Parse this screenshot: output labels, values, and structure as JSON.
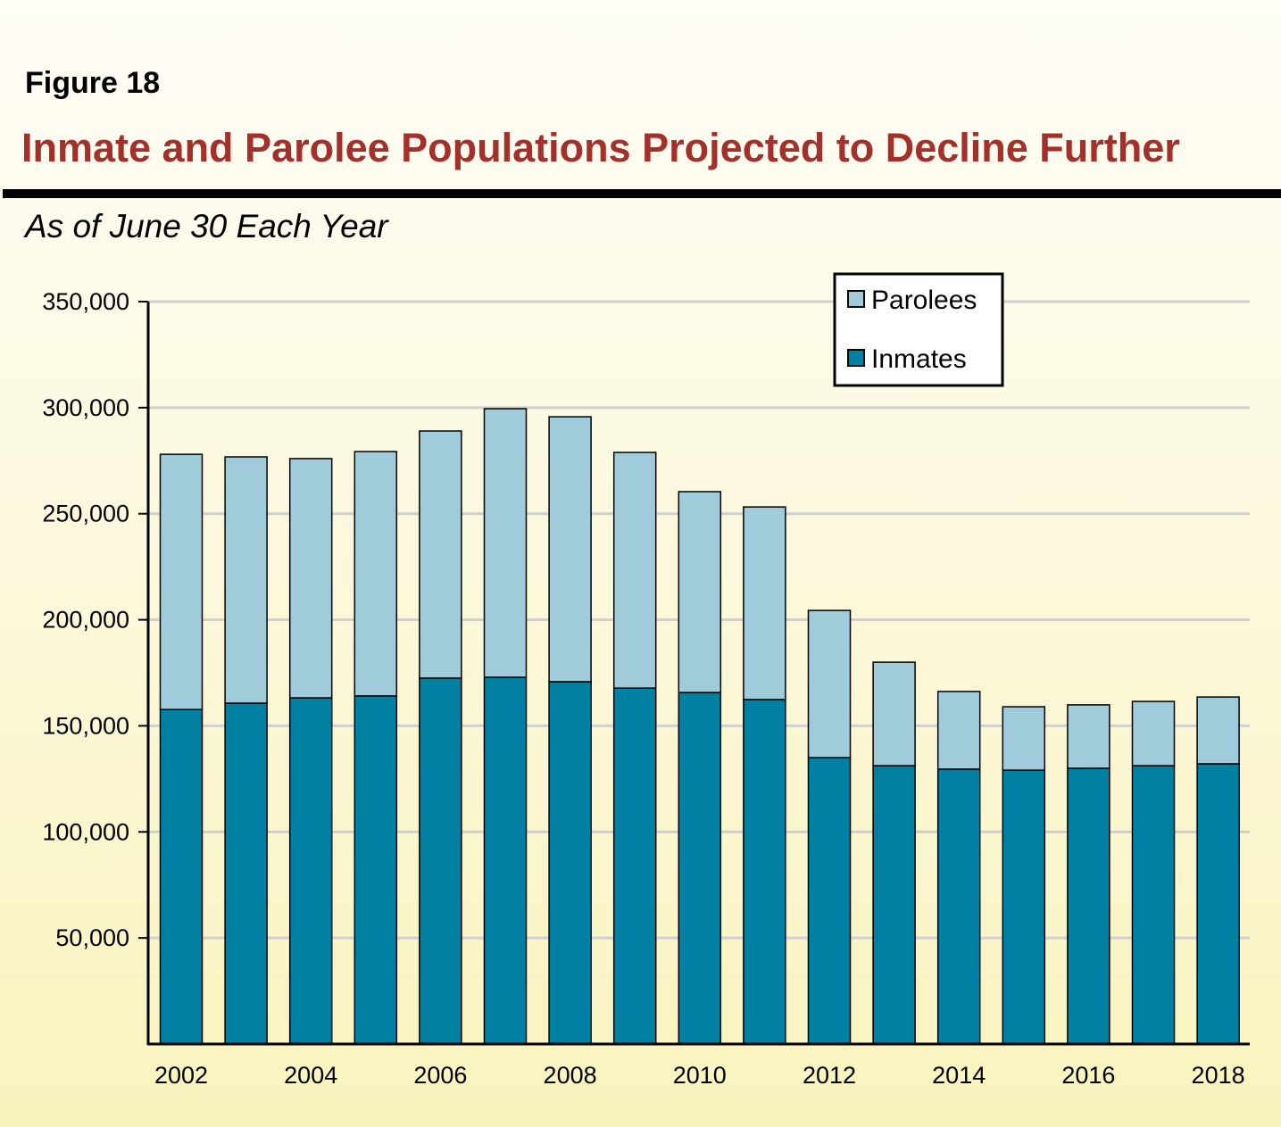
{
  "figure_label": "Figure 18",
  "title": "Inmate and Parolee Populations Projected to Decline Further",
  "subtitle": "As of June 30 Each Year",
  "colors": {
    "inmates": "#0080a3",
    "parolees": "#9fcbdb",
    "title": "#a3302a"
  },
  "chart_data": {
    "type": "bar",
    "stacked": true,
    "title": "Inmate and Parolee Populations Projected to Decline Further",
    "subtitle": "As of June 30 Each Year",
    "xlabel": "",
    "ylabel": "",
    "ylim": [
      0,
      350000
    ],
    "yticks": [
      50000,
      100000,
      150000,
      200000,
      250000,
      300000,
      350000
    ],
    "ytick_labels": [
      "50,000",
      "100,000",
      "150,000",
      "200,000",
      "250,000",
      "300,000",
      "350,000"
    ],
    "grid": true,
    "legend_position": "top-right",
    "categories": [
      "2002",
      "2003",
      "2004",
      "2005",
      "2006",
      "2007",
      "2008",
      "2009",
      "2010",
      "2011",
      "2012",
      "2013",
      "2014",
      "2015",
      "2016",
      "2017",
      "2018"
    ],
    "xtick_labels": [
      "2002",
      "",
      "2004",
      "",
      "2006",
      "",
      "2008",
      "",
      "2010",
      "",
      "2012",
      "",
      "2014",
      "",
      "2016",
      "",
      "2018"
    ],
    "series": [
      {
        "name": "Inmates",
        "values": [
          157700,
          160700,
          163200,
          164100,
          172500,
          172900,
          170800,
          167800,
          165700,
          162400,
          135000,
          131200,
          129600,
          129100,
          130000,
          131200,
          132100
        ]
      },
      {
        "name": "Parolees",
        "values": [
          120300,
          116100,
          112800,
          115200,
          116500,
          126600,
          124900,
          111100,
          94700,
          90800,
          69400,
          48800,
          36600,
          29900,
          29900,
          30300,
          31500
        ]
      }
    ],
    "legend": [
      "Parolees",
      "Inmates"
    ]
  }
}
